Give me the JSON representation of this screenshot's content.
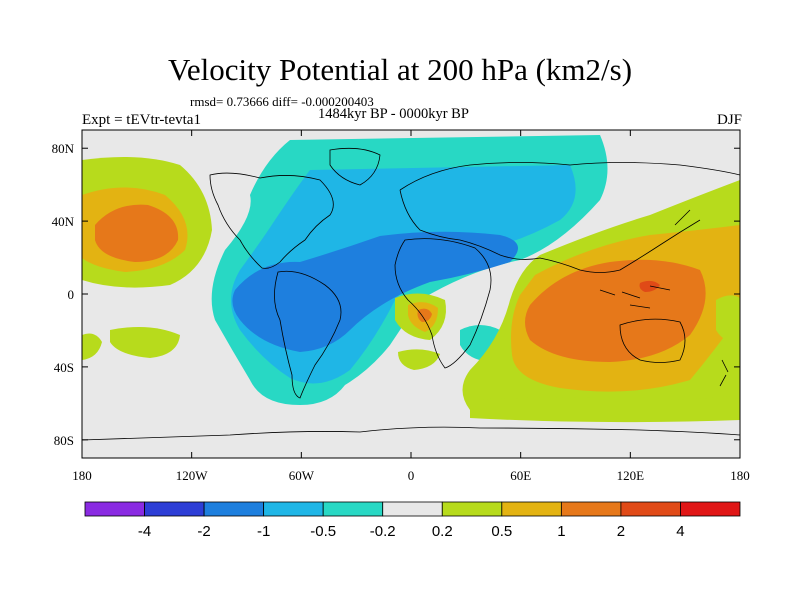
{
  "title": "Velocity Potential at 200 hPa (km2/s)",
  "stats": "rmsd= 0.73666 diff= -0.000200403",
  "period": "1484kyr BP - 0000kyr BP",
  "experiment": "Expt = tEVtr-tevta1",
  "season": "DJF",
  "lon_ticks": [
    "180",
    "120W",
    "60W",
    "0",
    "60E",
    "120E",
    "180"
  ],
  "lat_ticks": [
    "80N",
    "40N",
    "0",
    "40S",
    "80S"
  ],
  "colorbar": {
    "labels": [
      "-4",
      "-2",
      "-1",
      "-0.5",
      "-0.2",
      "0.2",
      "0.5",
      "1",
      "2",
      "4"
    ],
    "colors": [
      "#8a2be2",
      "#2d3ed6",
      "#1e7fde",
      "#1fb6e6",
      "#28d8c4",
      "#e8e8e8",
      "#b7db1c",
      "#e3b312",
      "#e6781a",
      "#e04a17",
      "#e01616"
    ]
  },
  "colors": {
    "neutral": "#e8e8e8",
    "lvl_m1": "#1e7fde",
    "lvl_m05": "#1fb6e6",
    "lvl_m02": "#28d8c4",
    "lvl_p02": "#b7db1c",
    "lvl_p05": "#e3b312",
    "lvl_p1": "#e6781a",
    "lvl_p2": "#e04a17"
  }
}
